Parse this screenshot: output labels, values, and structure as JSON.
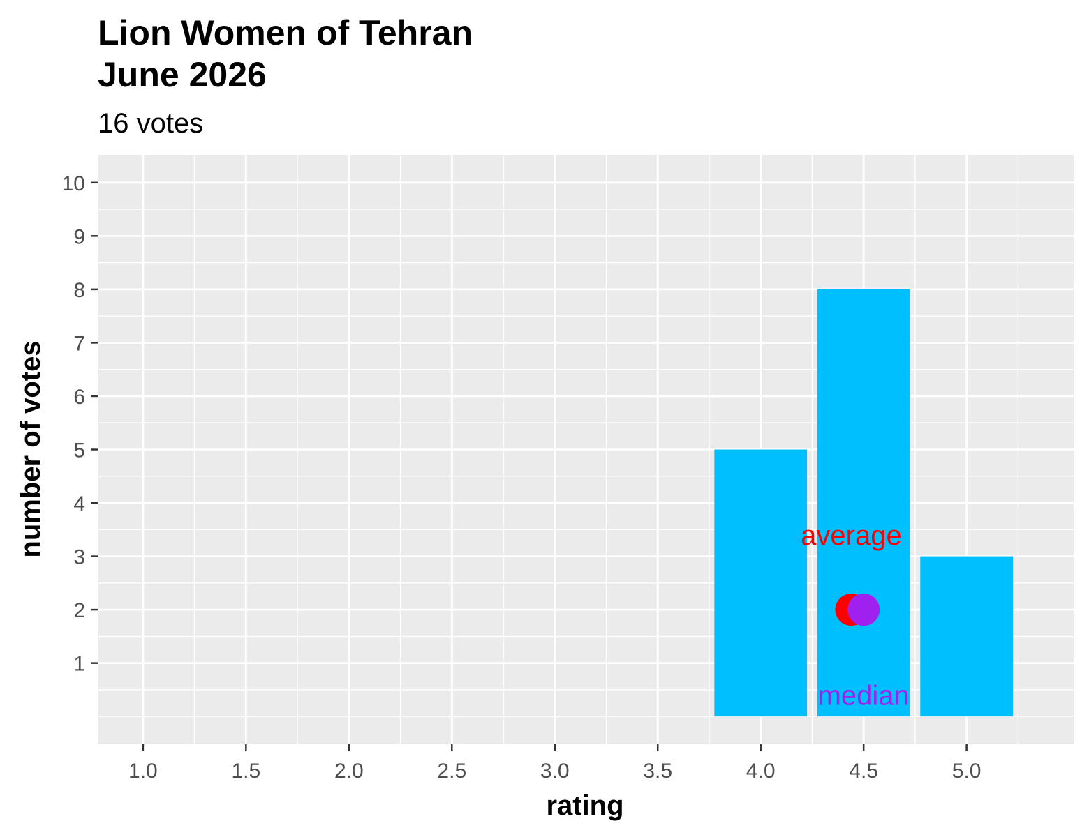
{
  "chart_data": {
    "type": "bar",
    "title_lines": [
      "Lion Women of Tehran",
      "June 2026"
    ],
    "subtitle": "16 votes",
    "xlabel": "rating",
    "ylabel": "number of votes",
    "x": [
      4.0,
      4.5,
      5.0
    ],
    "values": [
      5,
      8,
      3
    ],
    "xlim": [
      0.78,
      5.52
    ],
    "ylim": [
      -0.52,
      10.52
    ],
    "x_ticks": [
      1.0,
      1.5,
      2.0,
      2.5,
      3.0,
      3.5,
      4.0,
      4.5,
      5.0
    ],
    "x_tick_labels": [
      "1.0",
      "1.5",
      "2.0",
      "2.5",
      "3.0",
      "3.5",
      "4.0",
      "4.5",
      "5.0"
    ],
    "y_ticks": [
      1,
      2,
      3,
      4,
      5,
      6,
      7,
      8,
      9,
      10
    ],
    "y_tick_labels": [
      "1",
      "2",
      "3",
      "4",
      "5",
      "6",
      "7",
      "8",
      "9",
      "10"
    ],
    "bar_width": 0.45,
    "bar_color": "#00BFFF",
    "panel_background": "#EBEBEB",
    "grid": true,
    "annotations": [
      {
        "label": "average",
        "x": 4.44,
        "y": 2,
        "label_y": 3.4,
        "color": "#FF0000"
      },
      {
        "label": "median",
        "x": 4.5,
        "y": 2,
        "label_y": 0.4,
        "color": "#A020F0"
      }
    ]
  }
}
